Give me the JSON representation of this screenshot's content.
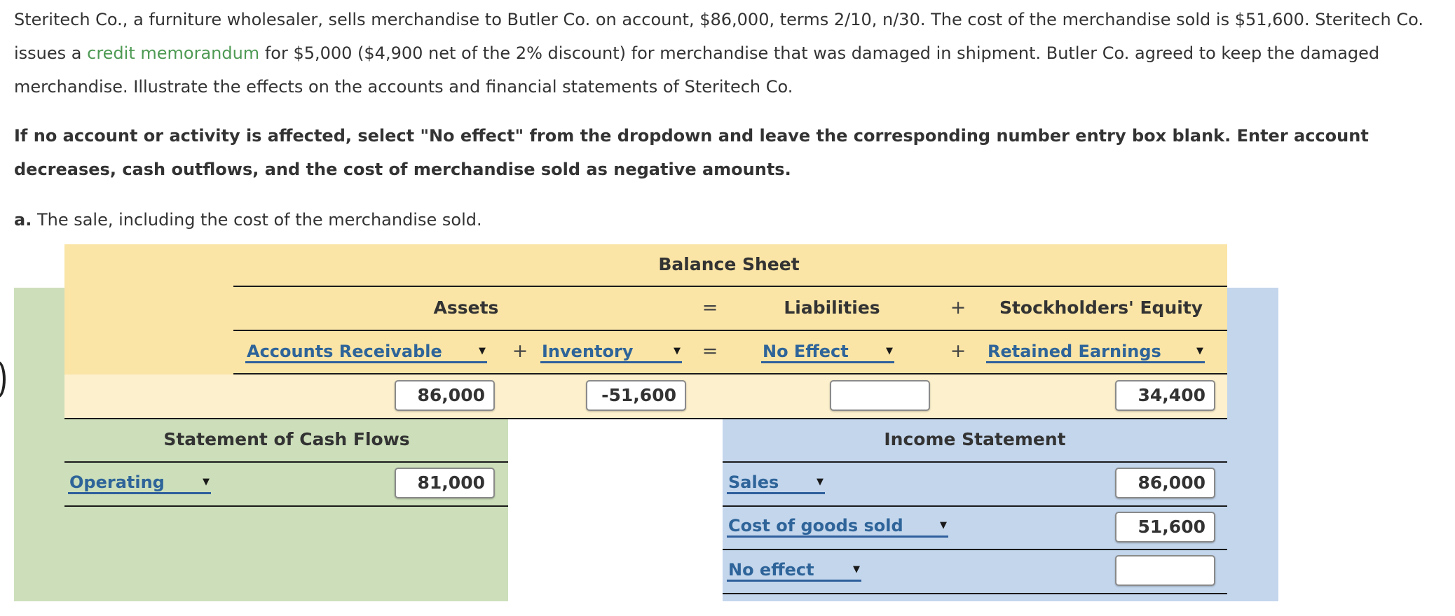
{
  "problem": {
    "intro_start": "Steritech Co., a furniture wholesaler, sells merchandise to Butler Co. on account, $86,000, terms 2/10, n/30. The cost of the merchandise sold is $51,600. Steritech Co. issues a ",
    "intro_term": "credit memorandum",
    "intro_end": " for $5,000 ($4,900 net of the 2% discount) for merchandise that was damaged in shipment. Butler Co. agreed to keep the damaged merchandise. Illustrate the effects on the accounts and financial statements of Steritech Co.",
    "instructions": "If no account or activity is affected, select \"No effect\" from the dropdown and leave the corresponding number entry box blank. Enter account decreases, cash outflows, and the cost of merchandise sold as negative amounts.",
    "part_label": "a.",
    "part_text": "The sale, including the cost of the merchandise sold."
  },
  "balance_sheet": {
    "title": "Balance Sheet",
    "assets_label": "Assets",
    "equals": "=",
    "liabilities_label": "Liabilities",
    "plus": "+",
    "equity_label": "Stockholders' Equity",
    "accounts": {
      "asset1": "Accounts Receivable",
      "asset2": "Inventory",
      "liability": "No Effect",
      "equity": "Retained Earnings"
    },
    "values": {
      "asset1": "86,000",
      "asset2": "-51,600",
      "liability": "",
      "equity": "34,400"
    }
  },
  "cash_flows": {
    "title": "Statement of Cash Flows",
    "activity": "Operating",
    "value": "81,000"
  },
  "income_statement": {
    "title": "Income Statement",
    "rows": [
      {
        "label": "Sales",
        "value": "86,000"
      },
      {
        "label": "Cost of goods sold",
        "value": "51,600"
      },
      {
        "label": "No effect",
        "value": ""
      }
    ]
  },
  "colors": {
    "balance_sheet_header": "#fae5a6",
    "balance_sheet_values": "#fcf0cd",
    "cash_flows_bg": "#ccdfba",
    "income_statement_bg": "#c3d6ec",
    "dropdown_link": "#2e6499",
    "term_link": "#4e9a54"
  },
  "icons": {
    "dropdown_arrow": "▼"
  }
}
